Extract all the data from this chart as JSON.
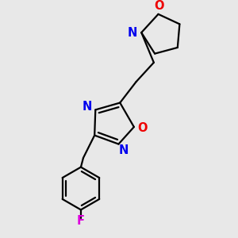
{
  "background_color": "#e8e8e8",
  "bond_color": "#000000",
  "N_color": "#0000ee",
  "O_color": "#ee0000",
  "F_color": "#dd00dd",
  "line_width": 1.6,
  "font_size": 10.5,
  "figsize": [
    3.0,
    3.0
  ],
  "dpi": 100,
  "xlim": [
    0.2,
    2.8
  ],
  "ylim": [
    0.1,
    2.95
  ]
}
